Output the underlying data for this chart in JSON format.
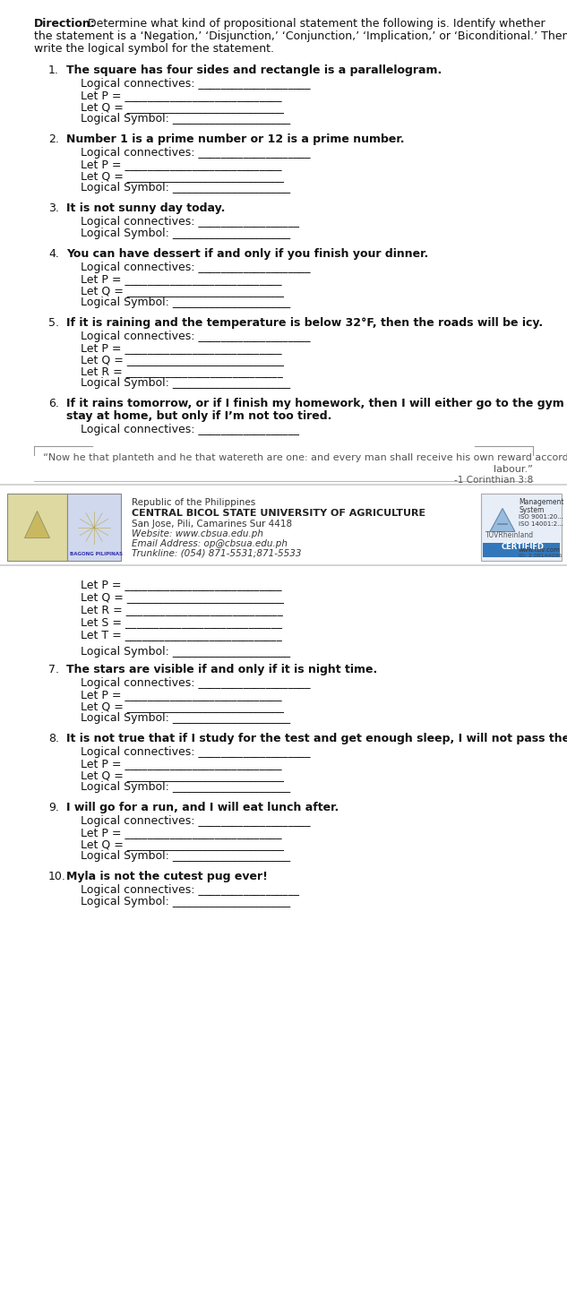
{
  "bg_color": "#ffffff",
  "text_color": "#000000",
  "items_page1": [
    {
      "num": "1.",
      "statement": "The square has four sides and rectangle is a parallelogram.",
      "lines": [
        "Logical connectives: ____________________",
        "Let P = ____________________________",
        "Let Q = ____________________________",
        "Logical Symbol: _____________________"
      ]
    },
    {
      "num": "2.",
      "statement": "Number 1 is a prime number or 12 is a prime number.",
      "lines": [
        "Logical connectives: ____________________",
        "Let P = ____________________________",
        "Let Q = ____________________________",
        "Logical Symbol: _____________________"
      ]
    },
    {
      "num": "3.",
      "statement": "It is not sunny day today.",
      "lines": [
        "Logical connectives: __________________",
        "Logical Symbol: _____________________"
      ]
    },
    {
      "num": "4.",
      "statement": "You can have dessert if and only if you finish your dinner.",
      "lines": [
        "Logical connectives: ____________________",
        "Let P = ____________________________",
        "Let Q = ____________________________",
        "Logical Symbol: _____________________"
      ]
    },
    {
      "num": "5.",
      "statement": "If it is raining and the temperature is below 32°F, then the roads will be icy.",
      "lines": [
        "Logical connectives: ____________________",
        "Let P = ____________________________",
        "Let Q = ____________________________",
        "Let R = ____________________________",
        "Logical Symbol: _____________________"
      ]
    },
    {
      "num": "6.",
      "statement_line1": "If it rains tomorrow, or if I finish my homework, then I will either go to the gym or",
      "statement_line2": "stay at home, but only if I’m not too tired.",
      "lines": [
        "Logical connectives: __________________"
      ]
    }
  ],
  "quote_line1": "“Now he that planteth and he that watereth are one: and every man shall receive his own reward according to his",
  "quote_line2": "labour.”",
  "quote_ref": "-1 Corinthian 3:8",
  "school_line1": "Republic of the Philippines",
  "school_name": "CENTRAL BICOL STATE UNIVERSITY OF AGRICULTURE",
  "school_line2": "San Jose, Pili, Camarines Sur 4418",
  "school_line3": "Website: www.cbsua.edu.ph",
  "school_line4": "Email Address: op@cbsua.edu.ph",
  "school_line5": "Trunkline: (054) 871-5531;871-5533",
  "items_page2_lets": [
    "Let P = ____________________________",
    "Let Q = ____________________________",
    "Let R = ____________________________",
    "Let S = ____________________________",
    "Let T = ____________________________"
  ],
  "logical_symbol_line": "Logical Symbol: _____________________",
  "items_page2": [
    {
      "num": "7.",
      "statement": "The stars are visible if and only if it is night time.",
      "lines": [
        "Logical connectives: ____________________",
        "Let P = ____________________________",
        "Let Q = ____________________________",
        "Logical Symbol: _____________________"
      ]
    },
    {
      "num": "8.",
      "statement": "It is not true that if I study for the test and get enough sleep, I will not pass the test.",
      "lines": [
        "Logical connectives: ____________________",
        "Let P = ____________________________",
        "Let Q = ____________________________",
        "Logical Symbol: _____________________"
      ]
    },
    {
      "num": "9.",
      "statement": "I will go for a run, and I will eat lunch after.",
      "lines": [
        "Logical connectives: ____________________",
        "Let P = ____________________________",
        "Let Q = ____________________________",
        "Logical Symbol: _____________________"
      ]
    },
    {
      "num": "10.",
      "statement": "Myla is not the cutest pug ever!",
      "lines": [
        "Logical connectives: __________________",
        "Logical Symbol: _____________________"
      ]
    }
  ]
}
